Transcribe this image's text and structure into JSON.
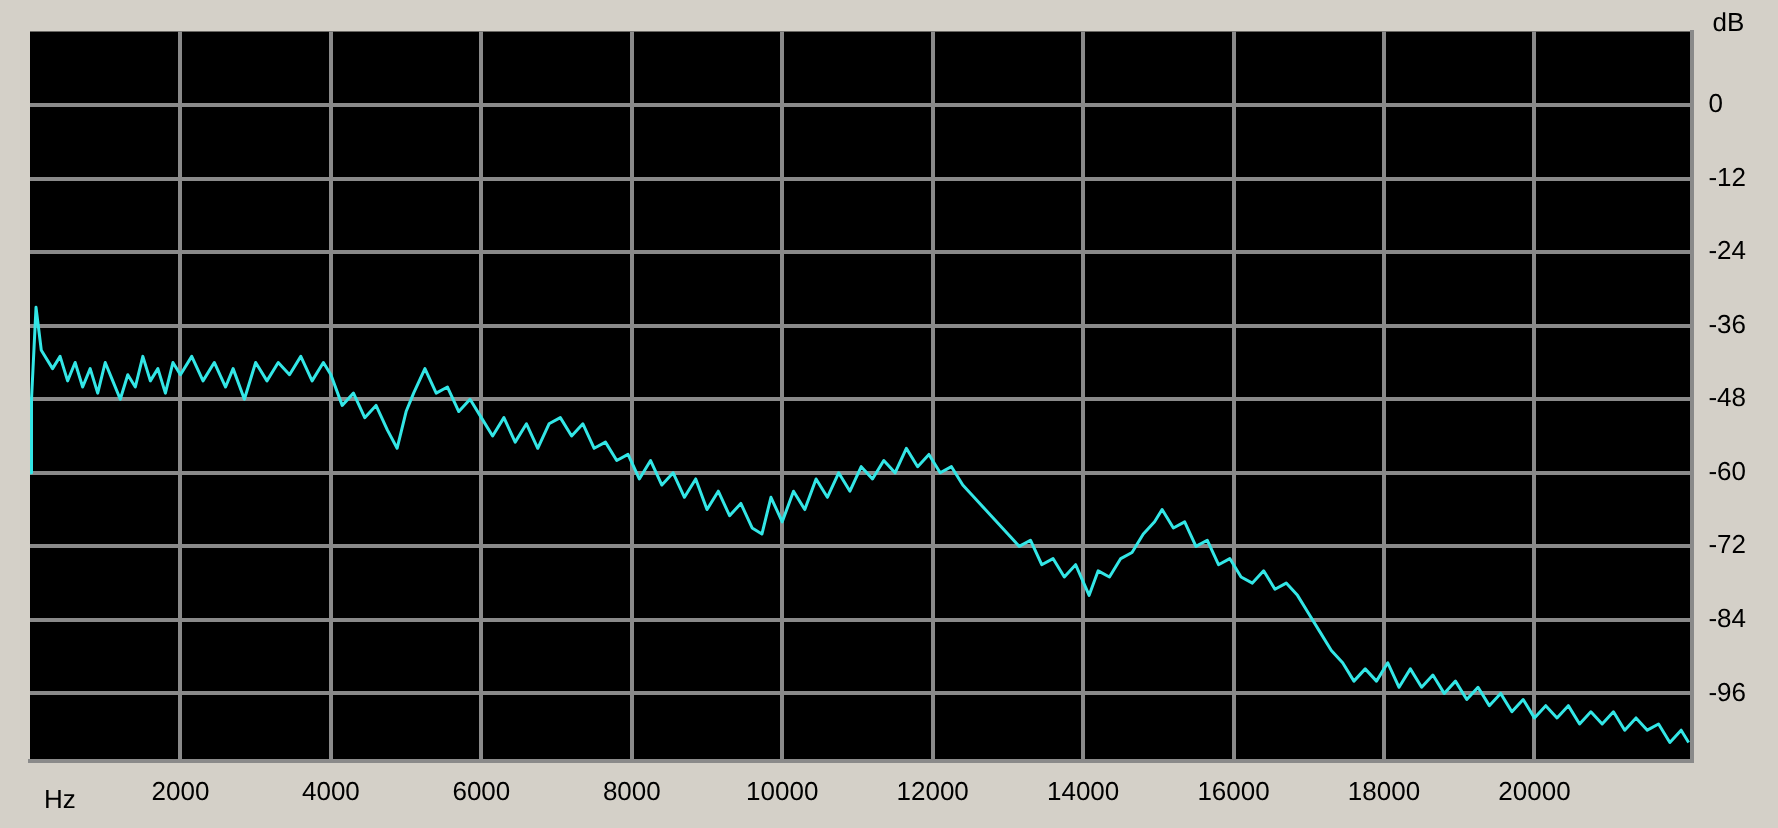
{
  "chart_data": {
    "type": "line",
    "xlabel": "Hz",
    "ylabel": "dB",
    "x": [
      0,
      20,
      80,
      150,
      300,
      400,
      500,
      600,
      700,
      800,
      900,
      1000,
      1100,
      1200,
      1300,
      1400,
      1500,
      1600,
      1700,
      1800,
      1900,
      2000,
      2150,
      2300,
      2450,
      2600,
      2700,
      2850,
      3000,
      3150,
      3300,
      3450,
      3600,
      3750,
      3900,
      4000,
      4150,
      4300,
      4450,
      4600,
      4750,
      4880,
      5000,
      5100,
      5250,
      5400,
      5550,
      5700,
      5850,
      6000,
      6150,
      6300,
      6450,
      6600,
      6750,
      6900,
      7050,
      7200,
      7350,
      7500,
      7650,
      7800,
      7950,
      8100,
      8250,
      8400,
      8550,
      8700,
      8850,
      9000,
      9150,
      9300,
      9450,
      9600,
      9730,
      9850,
      10000,
      10150,
      10300,
      10450,
      10600,
      10750,
      10900,
      11050,
      11200,
      11350,
      11500,
      11650,
      11800,
      11950,
      12100,
      12250,
      12400,
      12550,
      12700,
      12850,
      13000,
      13150,
      13300,
      13450,
      13600,
      13750,
      13900,
      14080,
      14200,
      14350,
      14500,
      14650,
      14800,
      14950,
      15050,
      15200,
      15350,
      15500,
      15650,
      15800,
      15950,
      16100,
      16250,
      16400,
      16550,
      16700,
      16850,
      17000,
      17150,
      17300,
      17450,
      17600,
      17750,
      17900,
      18050,
      18200,
      18350,
      18500,
      18650,
      18800,
      18950,
      19100,
      19250,
      19400,
      19550,
      19700,
      19850,
      20000,
      20150,
      20300,
      20450,
      20600,
      20750,
      20900,
      21050,
      21200,
      21350,
      21500,
      21650,
      21800,
      21950,
      22050
    ],
    "series": [
      {
        "color": "#33e6e6",
        "values": [
          -60,
          -48,
          -33,
          -40,
          -43,
          -41,
          -45,
          -42,
          -46,
          -43,
          -47,
          -42,
          -45,
          -48,
          -44,
          -46,
          -41,
          -45,
          -43,
          -47,
          -42,
          -44,
          -41,
          -45,
          -42,
          -46,
          -43,
          -48,
          -42,
          -45,
          -42,
          -44,
          -41,
          -45,
          -42,
          -44,
          -49,
          -47,
          -51,
          -49,
          -53,
          -56,
          -50,
          -47,
          -43,
          -47,
          -46,
          -50,
          -48,
          -51,
          -54,
          -51,
          -55,
          -52,
          -56,
          -52,
          -51,
          -54,
          -52,
          -56,
          -55,
          -58,
          -57,
          -61,
          -58,
          -62,
          -60,
          -64,
          -61,
          -66,
          -63,
          -67,
          -65,
          -69,
          -70,
          -64,
          -68,
          -63,
          -66,
          -61,
          -64,
          -60,
          -63,
          -59,
          -61,
          -58,
          -60,
          -56,
          -59,
          -57,
          -60,
          -59,
          -62,
          -64,
          -66,
          -68,
          -70,
          -72,
          -71,
          -75,
          -74,
          -77,
          -75,
          -80,
          -76,
          -77,
          -74,
          -73,
          -70,
          -68,
          -66,
          -69,
          -68,
          -72,
          -71,
          -75,
          -74,
          -77,
          -78,
          -76,
          -79,
          -78,
          -80,
          -83,
          -86,
          -89,
          -91,
          -94,
          -92,
          -94,
          -91,
          -95,
          -92,
          -95,
          -93,
          -96,
          -94,
          -97,
          -95,
          -98,
          -96,
          -99,
          -97,
          -100,
          -98,
          -100,
          -98,
          -101,
          -99,
          -101,
          -99,
          -102,
          -100,
          -102,
          -101,
          -104,
          -102,
          -104
        ]
      }
    ],
    "xlim": [
      0,
      22100
    ],
    "xticks": [
      2000,
      4000,
      6000,
      8000,
      10000,
      12000,
      14000,
      16000,
      18000,
      20000
    ],
    "ylim": [
      -107,
      12
    ],
    "yticks": [
      0,
      -12,
      -24,
      -36,
      -48,
      -60,
      -72,
      -84,
      -96
    ],
    "grid": true,
    "legend": false,
    "marker": "none",
    "line_style": "solid"
  }
}
